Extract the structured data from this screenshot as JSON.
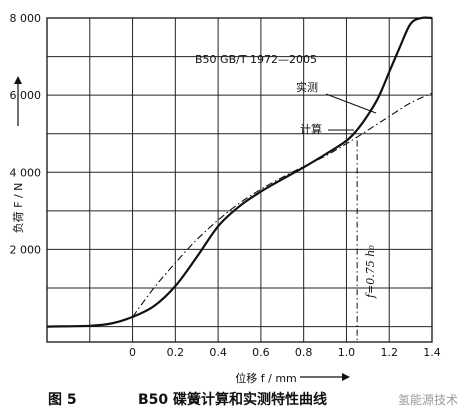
{
  "chart_data": {
    "type": "line",
    "xlabel": "位移 f / mm",
    "ylabel": "负荷 F / N",
    "xlim": [
      -0.4,
      1.4
    ],
    "ylim": [
      -400,
      8000
    ],
    "x_ticks": [
      "0",
      "0.2",
      "0.4",
      "0.6",
      "0.8",
      "1.0",
      "1.2",
      "1.4"
    ],
    "y_ticks": [
      "2 000",
      "4 000",
      "6 000",
      "8 000"
    ],
    "grid": true,
    "standard_label": "B50 GB/T 1972—2005",
    "series": [
      {
        "name": "实测",
        "style": "solid",
        "x": [
          -0.4,
          -0.2,
          -0.1,
          0.0,
          0.1,
          0.2,
          0.3,
          0.4,
          0.5,
          0.6,
          0.7,
          0.8,
          0.9,
          1.0,
          1.05,
          1.1,
          1.15,
          1.2,
          1.25,
          1.3,
          1.35,
          1.4
        ],
        "values": [
          0,
          20,
          80,
          250,
          530,
          1050,
          1800,
          2600,
          3120,
          3500,
          3820,
          4130,
          4460,
          4820,
          5100,
          5480,
          5950,
          6600,
          7250,
          7850,
          8000,
          8000
        ]
      },
      {
        "name": "计算",
        "style": "dash-dot",
        "x": [
          0.0,
          0.1,
          0.2,
          0.3,
          0.4,
          0.5,
          0.6,
          0.7,
          0.8,
          0.9,
          1.0,
          1.1,
          1.2,
          1.3,
          1.4
        ],
        "values": [
          250,
          1000,
          1650,
          2250,
          2760,
          3200,
          3560,
          3870,
          4150,
          4420,
          4740,
          5090,
          5450,
          5800,
          6050
        ]
      }
    ],
    "annotations": [
      {
        "text": "实测",
        "target_series": "实测"
      },
      {
        "text": "计算",
        "target_series": "计算"
      },
      {
        "text": "f=0.75 h₀",
        "x": 1.05
      }
    ],
    "reference_line_x": 1.05
  },
  "caption": {
    "figure": "图 5",
    "title": "B50 碟簧计算和实测特性曲线"
  },
  "watermark": "氢能源技术",
  "colors": {
    "ink": "#111111",
    "grid": "#222222",
    "background": "#ffffff",
    "watermark": "#9a9a9a"
  }
}
